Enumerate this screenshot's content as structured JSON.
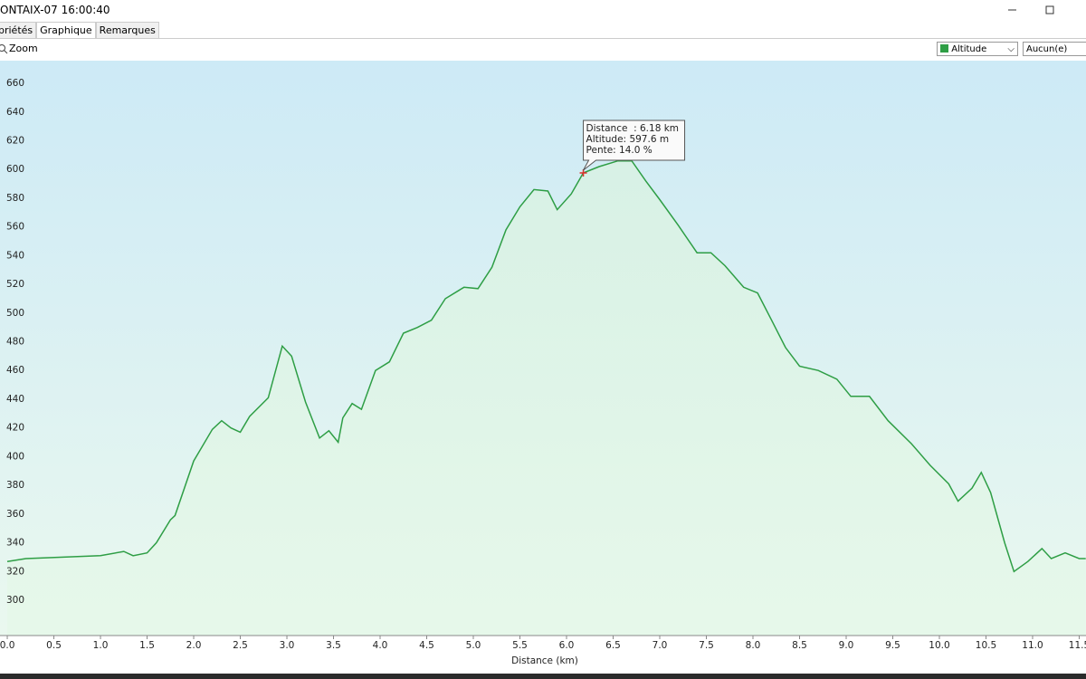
{
  "window_title": "ONTAIX-07 16:00:40",
  "tabs": [
    "priétés",
    "Graphique",
    "Remarques"
  ],
  "toolbar": {
    "zoom": "Zoom",
    "series_select": "Altitude",
    "second_select": "Aucun(e)"
  },
  "chart_data": {
    "type": "line",
    "x_label": "Distance   (km)",
    "x": [
      0.0,
      0.2,
      1.0,
      1.25,
      1.35,
      1.5,
      1.6,
      1.75,
      1.8,
      2.0,
      2.2,
      2.3,
      2.4,
      2.5,
      2.6,
      2.8,
      2.95,
      3.05,
      3.2,
      3.35,
      3.45,
      3.55,
      3.6,
      3.7,
      3.8,
      3.95,
      4.1,
      4.25,
      4.4,
      4.55,
      4.7,
      4.9,
      5.05,
      5.2,
      5.35,
      5.5,
      5.65,
      5.8,
      5.9,
      6.05,
      6.18,
      6.35,
      6.55,
      6.7,
      6.85,
      7.0,
      7.2,
      7.4,
      7.55,
      7.7,
      7.9,
      8.05,
      8.2,
      8.35,
      8.5,
      8.7,
      8.9,
      9.05,
      9.25,
      9.45,
      9.7,
      9.9,
      10.1,
      10.2,
      10.35,
      10.45,
      10.55,
      10.7,
      10.8,
      10.95,
      11.1,
      11.2,
      11.35,
      11.5,
      11.57
    ],
    "series": [
      {
        "name": "Altitude",
        "color": "#2e9e45",
        "values": [
          327,
          329,
          331,
          334,
          331,
          333,
          340,
          356,
          359,
          397,
          419,
          425,
          420,
          417,
          428,
          441,
          477,
          470,
          438,
          413,
          418,
          410,
          427,
          437,
          433,
          460,
          466,
          486,
          490,
          495,
          510,
          518,
          517,
          532,
          558,
          574,
          586,
          585,
          572,
          583,
          597.6,
          602,
          606,
          606,
          592,
          579,
          561,
          542,
          542,
          533,
          518,
          514,
          495,
          476,
          463,
          460,
          454,
          442,
          442,
          425,
          409,
          394,
          381,
          369,
          378,
          389,
          375,
          340,
          320,
          327,
          336,
          329,
          333,
          329,
          329
        ]
      }
    ],
    "xlim": [
      -0.078,
      11.573
    ],
    "ylim": [
      275.4,
      675.8
    ],
    "xticks": [
      {
        "value": 0,
        "label": "0.0"
      },
      0.5,
      {
        "value": 1,
        "label": "1.0"
      },
      1.5,
      {
        "value": 2,
        "label": "2.0"
      },
      2.5,
      {
        "value": 3,
        "label": "3.0"
      },
      3.5,
      {
        "value": 4,
        "label": "4.0"
      },
      4.5,
      {
        "value": 5,
        "label": "5.0"
      },
      5.5,
      {
        "value": 6,
        "label": "6.0"
      },
      6.5,
      {
        "value": 7,
        "label": "7.0"
      },
      7.5,
      {
        "value": 8,
        "label": "8.0"
      },
      8.5,
      {
        "value": 9,
        "label": "9.0"
      },
      9.5,
      {
        "value": 10,
        "label": "10.0"
      },
      10.5,
      {
        "value": 11,
        "label": "11.0"
      },
      11.5
    ],
    "yticks": [
      300,
      320,
      340,
      360,
      380,
      400,
      420,
      440,
      460,
      480,
      500,
      520,
      540,
      560,
      580,
      600,
      620,
      640,
      660
    ],
    "grid": true,
    "tooltip": {
      "index": 40,
      "lines": [
        "Distance  : 6.18 km",
        "Altitude: 597.6 m",
        "Pente: 14.0 %"
      ]
    }
  }
}
